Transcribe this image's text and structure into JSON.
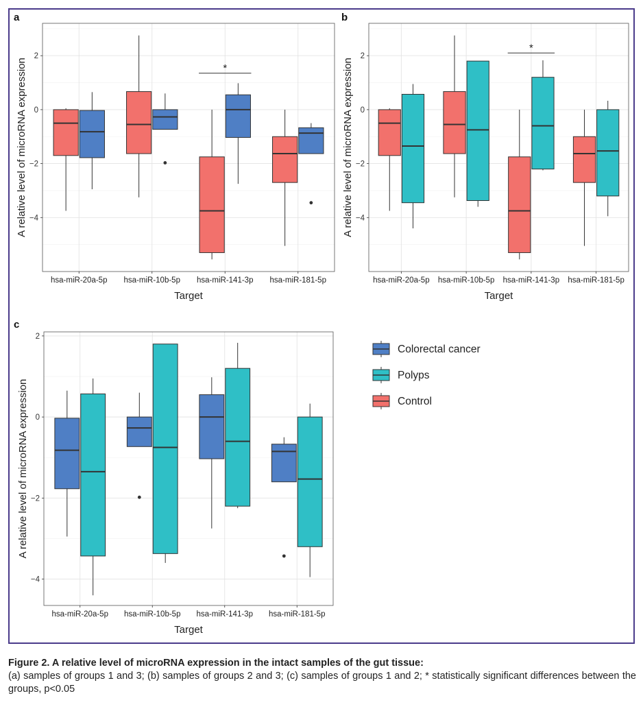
{
  "caption": {
    "title": "Figure 2. A relative level of microRNA expression in the intact samples of the gut tissue:",
    "body": "(a) samples of groups 1 and 3; (b) samples of groups 2 and 3; (c) samples of groups 1 and 2; * statistically significant differences between the groups, p<0.05"
  },
  "legend": [
    {
      "label": "Colorectal cancer",
      "color": "#4f7fc5"
    },
    {
      "label": "Polyps",
      "color": "#2fbfc6"
    },
    {
      "label": "Control",
      "color": "#f2716c"
    }
  ],
  "chart_data": [
    {
      "type": "box",
      "panel": "a",
      "xlabel": "Target",
      "ylabel": "A relative level of microRNA expression",
      "ylim": [
        -6.0,
        3.2
      ],
      "yticks": [
        -4,
        -2,
        0,
        2
      ],
      "categories": [
        "hsa-miR-20a-5p",
        "hsa-miR-10b-5p",
        "hsa-miR-141-3p",
        "hsa-miR-181-5p"
      ],
      "series": [
        {
          "name": "Control",
          "color": "#f2716c",
          "boxes": [
            {
              "min": -3.75,
              "q1": -1.7,
              "median": -0.5,
              "q3": 0.0,
              "max": 0.05,
              "outliers": []
            },
            {
              "min": -3.25,
              "q1": -1.63,
              "median": -0.55,
              "q3": 0.67,
              "max": 2.75,
              "outliers": []
            },
            {
              "min": -5.55,
              "q1": -5.3,
              "median": -3.75,
              "q3": -1.75,
              "max": 0.0,
              "outliers": []
            },
            {
              "min": -5.05,
              "q1": -2.7,
              "median": -1.63,
              "q3": -1.0,
              "max": 0.0,
              "outliers": []
            }
          ]
        },
        {
          "name": "Colorectal cancer",
          "color": "#4f7fc5",
          "boxes": [
            {
              "min": -2.95,
              "q1": -1.78,
              "median": -0.82,
              "q3": -0.03,
              "max": 0.65,
              "outliers": []
            },
            {
              "min": -0.73,
              "q1": -0.73,
              "median": -0.27,
              "q3": 0.0,
              "max": 0.6,
              "outliers": [
                -1.97
              ]
            },
            {
              "min": -2.75,
              "q1": -1.03,
              "median": 0.0,
              "q3": 0.55,
              "max": 0.98,
              "outliers": []
            },
            {
              "min": -1.63,
              "q1": -1.63,
              "median": -0.87,
              "q3": -0.67,
              "max": -0.5,
              "outliers": [
                -3.45
              ]
            }
          ]
        }
      ],
      "annotations": [
        {
          "text": "*",
          "category": "hsa-miR-141-3p",
          "y": 1.35
        }
      ]
    },
    {
      "type": "box",
      "panel": "b",
      "xlabel": "Target",
      "ylabel": "A relative level of microRNA expression",
      "ylim": [
        -6.0,
        3.2
      ],
      "yticks": [
        -4,
        -2,
        0,
        2
      ],
      "categories": [
        "hsa-miR-20a-5p",
        "hsa-miR-10b-5p",
        "hsa-miR-141-3p",
        "hsa-miR-181-5p"
      ],
      "series": [
        {
          "name": "Control",
          "color": "#f2716c",
          "boxes": [
            {
              "min": -3.75,
              "q1": -1.7,
              "median": -0.5,
              "q3": 0.0,
              "max": 0.05,
              "outliers": []
            },
            {
              "min": -3.25,
              "q1": -1.63,
              "median": -0.55,
              "q3": 0.67,
              "max": 2.75,
              "outliers": []
            },
            {
              "min": -5.55,
              "q1": -5.3,
              "median": -3.75,
              "q3": -1.75,
              "max": 0.0,
              "outliers": []
            },
            {
              "min": -5.05,
              "q1": -2.7,
              "median": -1.63,
              "q3": -1.0,
              "max": 0.0,
              "outliers": []
            }
          ]
        },
        {
          "name": "Polyps",
          "color": "#2fbfc6",
          "boxes": [
            {
              "min": -4.4,
              "q1": -3.45,
              "median": -1.35,
              "q3": 0.57,
              "max": 0.95,
              "outliers": []
            },
            {
              "min": -3.6,
              "q1": -3.37,
              "median": -0.75,
              "q3": 1.8,
              "max": 1.8,
              "outliers": []
            },
            {
              "min": -2.25,
              "q1": -2.2,
              "median": -0.6,
              "q3": 1.2,
              "max": 1.83,
              "outliers": []
            },
            {
              "min": -3.95,
              "q1": -3.2,
              "median": -1.53,
              "q3": 0.0,
              "max": 0.33,
              "outliers": []
            }
          ]
        }
      ],
      "annotations": [
        {
          "text": "*",
          "category": "hsa-miR-141-3p",
          "y": 2.1
        }
      ]
    },
    {
      "type": "box",
      "panel": "c",
      "xlabel": "Target",
      "ylabel": "A relative level of microRNA expression",
      "ylim": [
        -4.65,
        2.1
      ],
      "yticks": [
        -4,
        -2,
        0,
        2
      ],
      "categories": [
        "hsa-miR-20a-5p",
        "hsa-miR-10b-5p",
        "hsa-miR-141-3p",
        "hsa-miR-181-5p"
      ],
      "series": [
        {
          "name": "Colorectal cancer",
          "color": "#4f7fc5",
          "boxes": [
            {
              "min": -2.95,
              "q1": -1.77,
              "median": -0.82,
              "q3": -0.03,
              "max": 0.65,
              "outliers": []
            },
            {
              "min": -0.73,
              "q1": -0.73,
              "median": -0.27,
              "q3": 0.0,
              "max": 0.6,
              "outliers": [
                -1.98
              ]
            },
            {
              "min": -2.75,
              "q1": -1.03,
              "median": 0.0,
              "q3": 0.55,
              "max": 0.98,
              "outliers": []
            },
            {
              "min": -1.6,
              "q1": -1.6,
              "median": -0.85,
              "q3": -0.67,
              "max": -0.5,
              "outliers": [
                -3.43
              ]
            }
          ]
        },
        {
          "name": "Polyps",
          "color": "#2fbfc6",
          "boxes": [
            {
              "min": -4.4,
              "q1": -3.43,
              "median": -1.35,
              "q3": 0.57,
              "max": 0.95,
              "outliers": []
            },
            {
              "min": -3.6,
              "q1": -3.37,
              "median": -0.75,
              "q3": 1.8,
              "max": 1.8,
              "outliers": []
            },
            {
              "min": -2.25,
              "q1": -2.2,
              "median": -0.6,
              "q3": 1.2,
              "max": 1.83,
              "outliers": []
            },
            {
              "min": -3.95,
              "q1": -3.2,
              "median": -1.53,
              "q3": 0.0,
              "max": 0.33,
              "outliers": []
            }
          ]
        }
      ],
      "annotations": []
    }
  ]
}
